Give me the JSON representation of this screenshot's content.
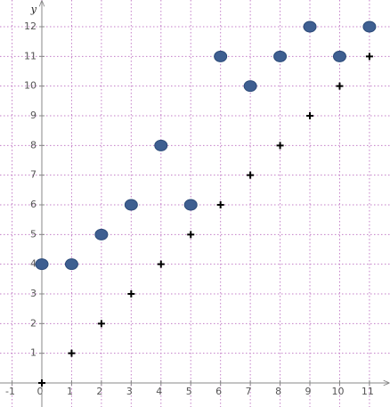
{
  "chart_data": {
    "type": "scatter",
    "ylabel": "y",
    "x": [
      0,
      1,
      2,
      3,
      4,
      5,
      6,
      7,
      8,
      9,
      10,
      11
    ],
    "series": [
      {
        "color": "#3e5f91",
        "marker": "circle",
        "values": [
          4,
          4,
          5,
          6,
          8,
          6,
          11,
          10,
          11,
          12,
          11,
          12
        ]
      },
      {
        "color": "#000000",
        "marker": "plus",
        "values": [
          0,
          1,
          2,
          3,
          4,
          5,
          6,
          7,
          8,
          9,
          10,
          11
        ]
      }
    ],
    "xlim": [
      -1.405,
      11.69
    ],
    "ylim": [
      -0.81,
      12.9
    ],
    "xticks": [
      -1,
      0,
      1,
      2,
      3,
      4,
      5,
      6,
      7,
      8,
      9,
      10,
      11
    ],
    "yticks": [
      1,
      2,
      3,
      4,
      5,
      6,
      7,
      8,
      9,
      10,
      11,
      12
    ],
    "grid": true
  }
}
